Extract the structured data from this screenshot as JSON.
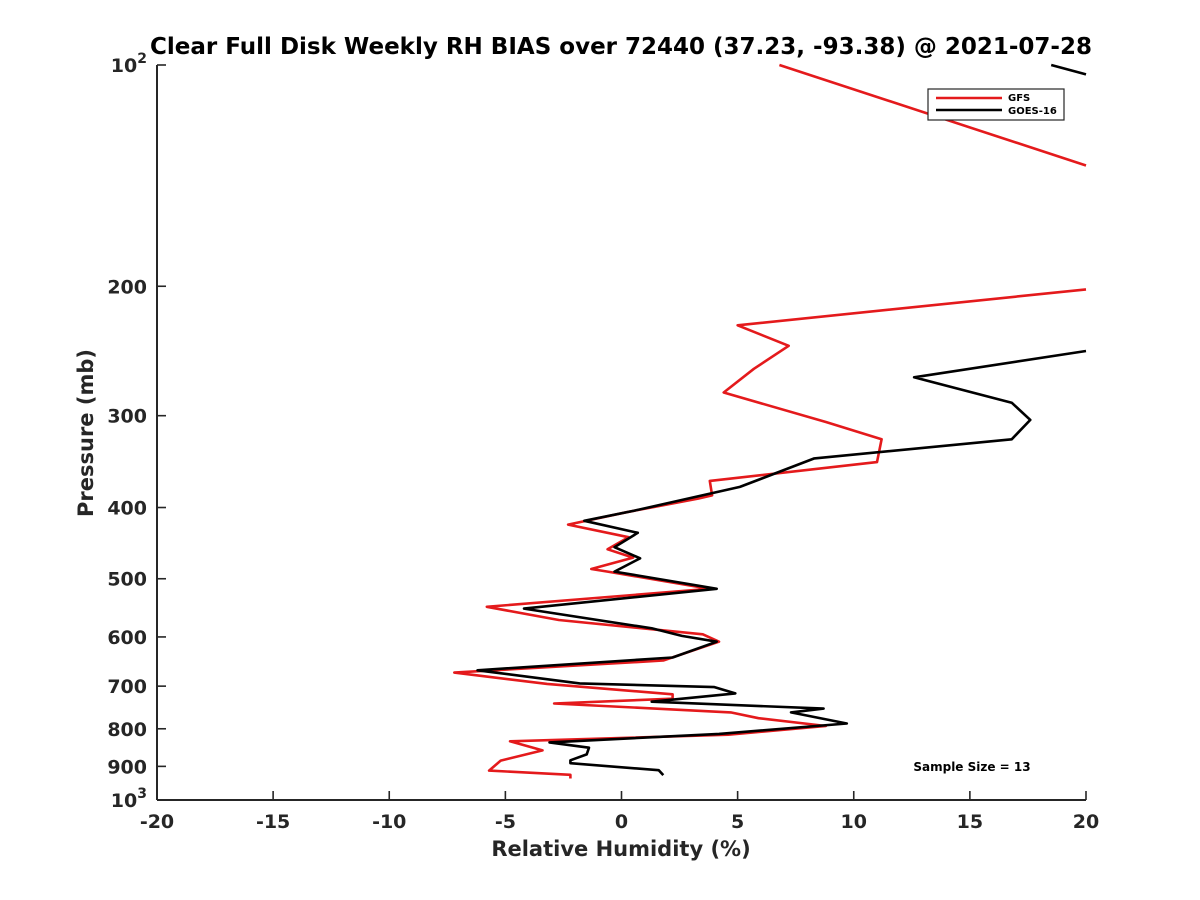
{
  "chart_data": {
    "type": "line",
    "title": "Clear Full Disk Weekly RH BIAS over 72440 (37.23, -93.38) @ 2021-07-28",
    "xlabel": "Relative Humidity (%)",
    "ylabel": "Pressure (mb)",
    "xlim": [
      -20,
      20
    ],
    "ylim": [
      100,
      1000
    ],
    "y_scale": "log",
    "y_reversed": true,
    "grid": false,
    "legend_position": "top-right",
    "x_ticks": [
      "-20",
      "-15",
      "-10",
      "-5",
      "0",
      "5",
      "10",
      "15",
      "20"
    ],
    "y_ticks": [
      {
        "value": 100,
        "base": "10",
        "exp": "2"
      },
      {
        "value": 200,
        "label": "200"
      },
      {
        "value": 300,
        "label": "300"
      },
      {
        "value": 400,
        "label": "400"
      },
      {
        "value": 500,
        "label": "500"
      },
      {
        "value": 600,
        "label": "600"
      },
      {
        "value": 700,
        "label": "700"
      },
      {
        "value": 800,
        "label": "800"
      },
      {
        "value": 900,
        "label": "900"
      },
      {
        "value": 1000,
        "base": "10",
        "exp": "3"
      }
    ],
    "annotation": "Sample Size = 13",
    "series": [
      {
        "name": "GFS",
        "color": "#e41a1c",
        "points": [
          [
            6.8,
            100
          ],
          [
            20,
            137
          ],
          [
            20,
            202
          ],
          [
            5.0,
            226
          ],
          [
            7.2,
            241
          ],
          [
            5.7,
            259
          ],
          [
            4.4,
            279
          ],
          [
            8.8,
            306
          ],
          [
            11.2,
            323
          ],
          [
            11.0,
            347
          ],
          [
            3.8,
            368
          ],
          [
            3.9,
            385
          ],
          [
            3.3,
            389
          ],
          [
            0.2,
            406
          ],
          [
            -2.3,
            422
          ],
          [
            0.3,
            439
          ],
          [
            -0.6,
            456
          ],
          [
            0.5,
            468
          ],
          [
            -1.3,
            485
          ],
          [
            -0.6,
            489
          ],
          [
            3.8,
            516
          ],
          [
            -5.8,
            546
          ],
          [
            -2.7,
            569
          ],
          [
            3.5,
            595
          ],
          [
            4.2,
            609
          ],
          [
            1.8,
            646
          ],
          [
            -7.2,
            671
          ],
          [
            -3.2,
            695
          ],
          [
            2.2,
            718
          ],
          [
            2.2,
            728
          ],
          [
            -2.9,
            739
          ],
          [
            4.7,
            760
          ],
          [
            5.9,
            774
          ],
          [
            8.8,
            793
          ],
          [
            4.6,
            815
          ],
          [
            -4.8,
            832
          ],
          [
            -3.4,
            856
          ],
          [
            -5.2,
            884
          ],
          [
            -5.7,
            912
          ],
          [
            -2.2,
            924
          ],
          [
            -2.2,
            935
          ]
        ]
      },
      {
        "name": "GOES-16",
        "color": "#000000",
        "points": [
          [
            18.5,
            100
          ],
          [
            20,
            103
          ],
          [
            20,
            245
          ],
          [
            12.6,
            266
          ],
          [
            16.8,
            288
          ],
          [
            17.6,
            304
          ],
          [
            16.8,
            323
          ],
          [
            8.3,
            343
          ],
          [
            5.1,
            375
          ],
          [
            0.7,
            403
          ],
          [
            -1.6,
            417
          ],
          [
            0.7,
            433
          ],
          [
            -0.3,
            453
          ],
          [
            0.8,
            469
          ],
          [
            -0.3,
            489
          ],
          [
            4.1,
            516
          ],
          [
            -4.2,
            549
          ],
          [
            1.3,
            584
          ],
          [
            2.6,
            598
          ],
          [
            4.1,
            609
          ],
          [
            2.2,
            640
          ],
          [
            -6.2,
            666
          ],
          [
            -1.8,
            694
          ],
          [
            4.0,
            702
          ],
          [
            4.9,
            716
          ],
          [
            1.3,
            735
          ],
          [
            8.7,
            751
          ],
          [
            7.3,
            760
          ],
          [
            9.7,
            787
          ],
          [
            4.2,
            813
          ],
          [
            -3.1,
            835
          ],
          [
            -1.4,
            849
          ],
          [
            -1.5,
            867
          ],
          [
            -2.2,
            883
          ],
          [
            -2.2,
            891
          ],
          [
            1.6,
            911
          ],
          [
            1.8,
            925
          ]
        ]
      }
    ]
  }
}
